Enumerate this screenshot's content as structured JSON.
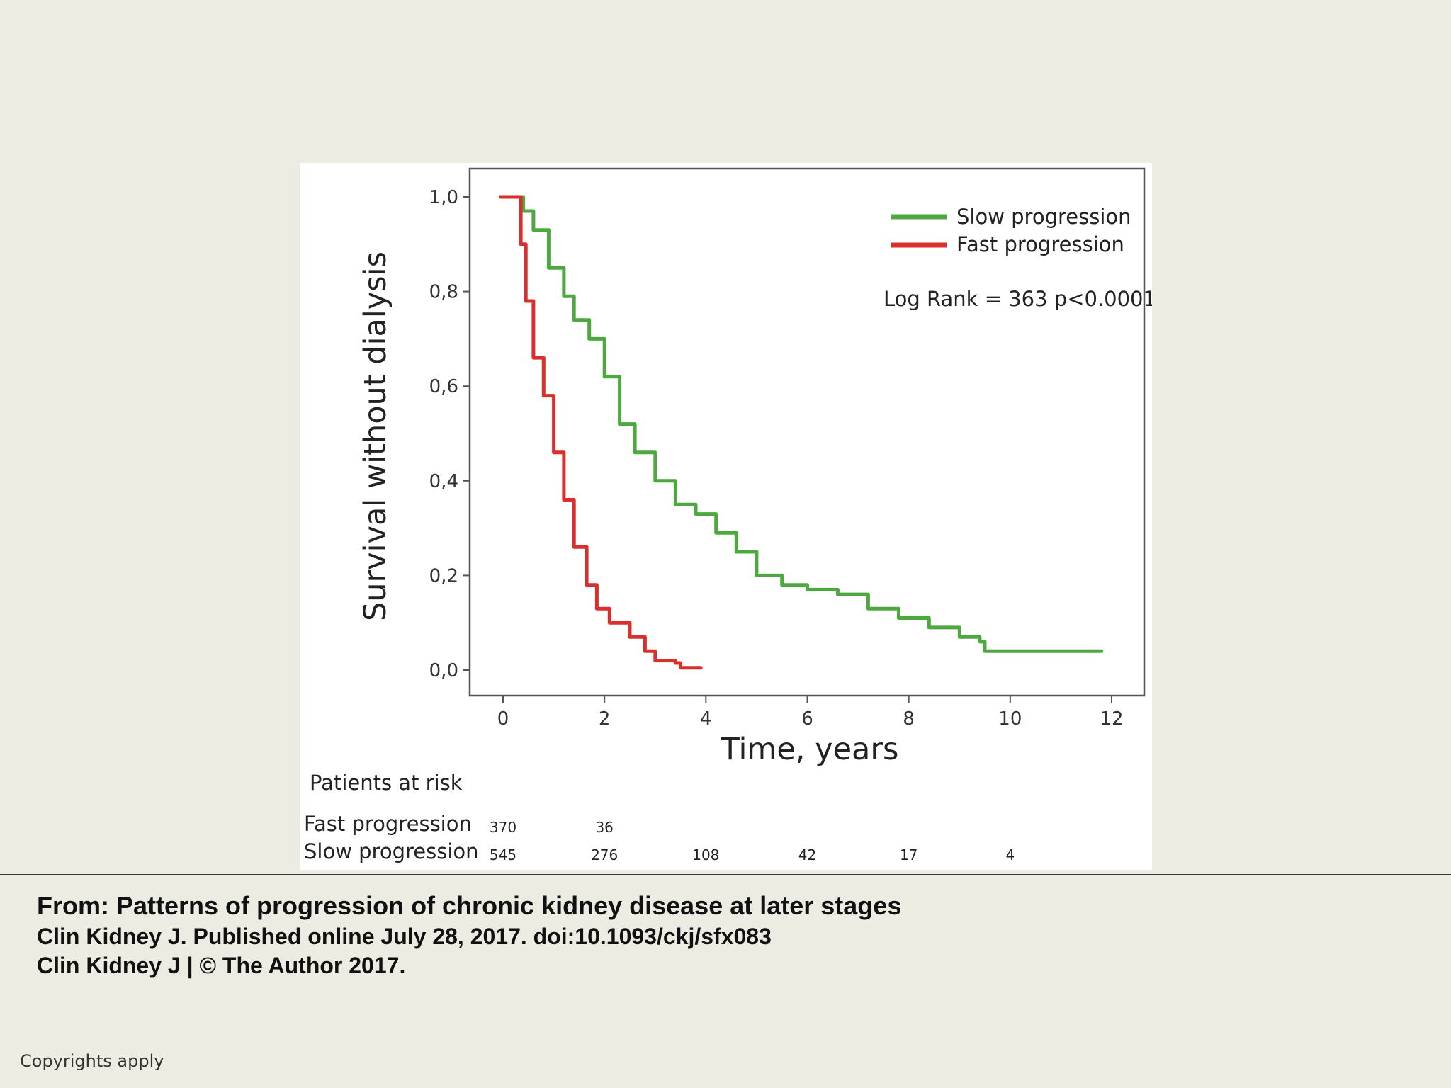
{
  "chart_data": {
    "type": "line",
    "xlabel": "Time, years",
    "ylabel": "Survival without dialysis",
    "xlim": [
      0,
      12
    ],
    "ylim": [
      0,
      1
    ],
    "x_ticks": [
      "0",
      "2",
      "4",
      "6",
      "8",
      "10",
      "12"
    ],
    "y_ticks": [
      "0,0",
      "0,2",
      "0,4",
      "0,6",
      "0,8",
      "1,0"
    ],
    "legend_position": "top-right",
    "annotation": "Log Rank = 363 p<0.0001",
    "series": [
      {
        "name": "Slow progression",
        "color": "#4ea840",
        "points": [
          [
            -0.05,
            1.0
          ],
          [
            0.3,
            1.0
          ],
          [
            0.4,
            0.97
          ],
          [
            0.6,
            0.93
          ],
          [
            0.9,
            0.85
          ],
          [
            1.2,
            0.79
          ],
          [
            1.4,
            0.74
          ],
          [
            1.7,
            0.7
          ],
          [
            2.0,
            0.62
          ],
          [
            2.3,
            0.52
          ],
          [
            2.6,
            0.46
          ],
          [
            3.0,
            0.4
          ],
          [
            3.4,
            0.35
          ],
          [
            3.8,
            0.33
          ],
          [
            4.2,
            0.29
          ],
          [
            4.6,
            0.25
          ],
          [
            5.0,
            0.2
          ],
          [
            5.5,
            0.18
          ],
          [
            6.0,
            0.17
          ],
          [
            6.6,
            0.16
          ],
          [
            7.2,
            0.13
          ],
          [
            7.8,
            0.11
          ],
          [
            8.4,
            0.09
          ],
          [
            9.0,
            0.07
          ],
          [
            9.4,
            0.06
          ],
          [
            9.5,
            0.04
          ],
          [
            11.8,
            0.04
          ]
        ]
      },
      {
        "name": "Fast progression",
        "color": "#d9302e",
        "points": [
          [
            -0.05,
            1.0
          ],
          [
            0.25,
            1.0
          ],
          [
            0.35,
            0.9
          ],
          [
            0.45,
            0.78
          ],
          [
            0.6,
            0.66
          ],
          [
            0.8,
            0.58
          ],
          [
            1.0,
            0.46
          ],
          [
            1.2,
            0.36
          ],
          [
            1.4,
            0.26
          ],
          [
            1.65,
            0.18
          ],
          [
            1.85,
            0.13
          ],
          [
            2.1,
            0.1
          ],
          [
            2.5,
            0.07
          ],
          [
            2.8,
            0.04
          ],
          [
            3.0,
            0.02
          ],
          [
            3.4,
            0.015
          ],
          [
            3.5,
            0.005
          ],
          [
            3.9,
            0.005
          ]
        ]
      }
    ],
    "risk_table": {
      "title": "Patients at risk",
      "rows": [
        {
          "label": "Fast progression",
          "values": [
            {
              "x": 0,
              "n": "370"
            },
            {
              "x": 2,
              "n": "36"
            }
          ]
        },
        {
          "label": "Slow progression",
          "values": [
            {
              "x": 0,
              "n": "545"
            },
            {
              "x": 2,
              "n": "276"
            },
            {
              "x": 4,
              "n": "108"
            },
            {
              "x": 6,
              "n": "42"
            },
            {
              "x": 8,
              "n": "17"
            },
            {
              "x": 10,
              "n": "4"
            }
          ]
        }
      ]
    }
  },
  "caption": {
    "title": "From: Patterns of progression of chronic kidney disease at later stages",
    "journal_line": "Clin Kidney J. Published online  July 28, 2017. doi:10.1093/ckj/sfx083",
    "copyright_line": "Clin Kidney J | © The Author 2017."
  },
  "footer": {
    "copyrights": "Copyrights apply"
  }
}
